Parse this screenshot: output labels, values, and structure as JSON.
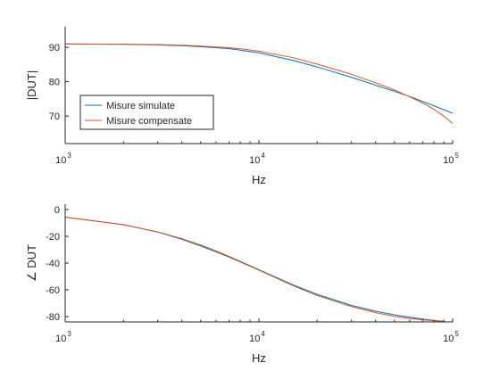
{
  "chart_data": [
    {
      "type": "line",
      "title": "",
      "xlabel": "Hz",
      "ylabel": "|DUT|",
      "xscale": "log",
      "xlim": [
        1000,
        100000
      ],
      "ylim": [
        62,
        96
      ],
      "xticks": [
        1000,
        10000,
        100000
      ],
      "yticks": [
        70,
        80,
        90
      ],
      "ytick_labels": [
        "70",
        "80",
        "90"
      ],
      "grid": false,
      "legend": {
        "position": "lower-left",
        "entries": [
          "Misure simulate",
          "Misure compensate"
        ]
      },
      "series": [
        {
          "name": "Misure simulate",
          "color": "#0072BD",
          "x": [
            1000,
            2000,
            3000,
            4000,
            5000,
            6000,
            7000,
            8000,
            10000,
            15000,
            20000,
            30000,
            40000,
            50000,
            60000,
            80000,
            100000
          ],
          "y": [
            91.0,
            90.9,
            90.7,
            90.5,
            90.2,
            89.9,
            89.6,
            89.2,
            88.4,
            86.2,
            84.3,
            81.3,
            79.0,
            77.2,
            75.7,
            73.0,
            70.8
          ]
        },
        {
          "name": "Misure compensate",
          "color": "#D95319",
          "x": [
            1000,
            2000,
            3000,
            4000,
            5000,
            6000,
            7000,
            8000,
            10000,
            15000,
            20000,
            30000,
            40000,
            50000,
            60000,
            70000,
            80000,
            90000,
            100000
          ],
          "y": [
            91.0,
            90.9,
            90.8,
            90.6,
            90.4,
            90.1,
            89.9,
            89.6,
            88.9,
            87.0,
            85.1,
            82.2,
            79.7,
            77.6,
            75.6,
            73.8,
            72.0,
            70.0,
            67.8
          ]
        }
      ]
    },
    {
      "type": "line",
      "title": "",
      "xlabel": "Hz",
      "ylabel": "∠ DUT",
      "xscale": "log",
      "xlim": [
        1000,
        100000
      ],
      "ylim": [
        -84,
        4
      ],
      "xticks": [
        1000,
        10000,
        100000
      ],
      "yticks": [
        0,
        -20,
        -40,
        -60,
        -80
      ],
      "ytick_labels": [
        "0",
        "-20",
        "-40",
        "-60",
        "-80"
      ],
      "grid": false,
      "series": [
        {
          "name": "Misure simulate",
          "color": "#0072BD",
          "x": [
            1000,
            2000,
            3000,
            4000,
            5000,
            6000,
            7000,
            8000,
            10000,
            15000,
            20000,
            30000,
            40000,
            50000,
            60000,
            80000,
            90000
          ],
          "y": [
            -5.7,
            -11.3,
            -16.7,
            -21.8,
            -26.6,
            -31.0,
            -35.0,
            -38.7,
            -45.0,
            -56.3,
            -63.4,
            -71.6,
            -76.0,
            -78.7,
            -80.5,
            -82.9,
            -83.5
          ]
        },
        {
          "name": "Misure compensate",
          "color": "#D95319",
          "x": [
            1000,
            2000,
            3000,
            4000,
            5000,
            6000,
            7000,
            8000,
            10000,
            15000,
            20000,
            30000,
            40000,
            50000,
            60000,
            70000,
            80000,
            90000
          ],
          "y": [
            -5.7,
            -11.3,
            -16.8,
            -22.3,
            -27.3,
            -31.6,
            -35.5,
            -39.1,
            -45.3,
            -56.9,
            -64.3,
            -72.5,
            -77.1,
            -79.8,
            -81.4,
            -82.4,
            -83.1,
            -83.6
          ]
        }
      ]
    }
  ]
}
